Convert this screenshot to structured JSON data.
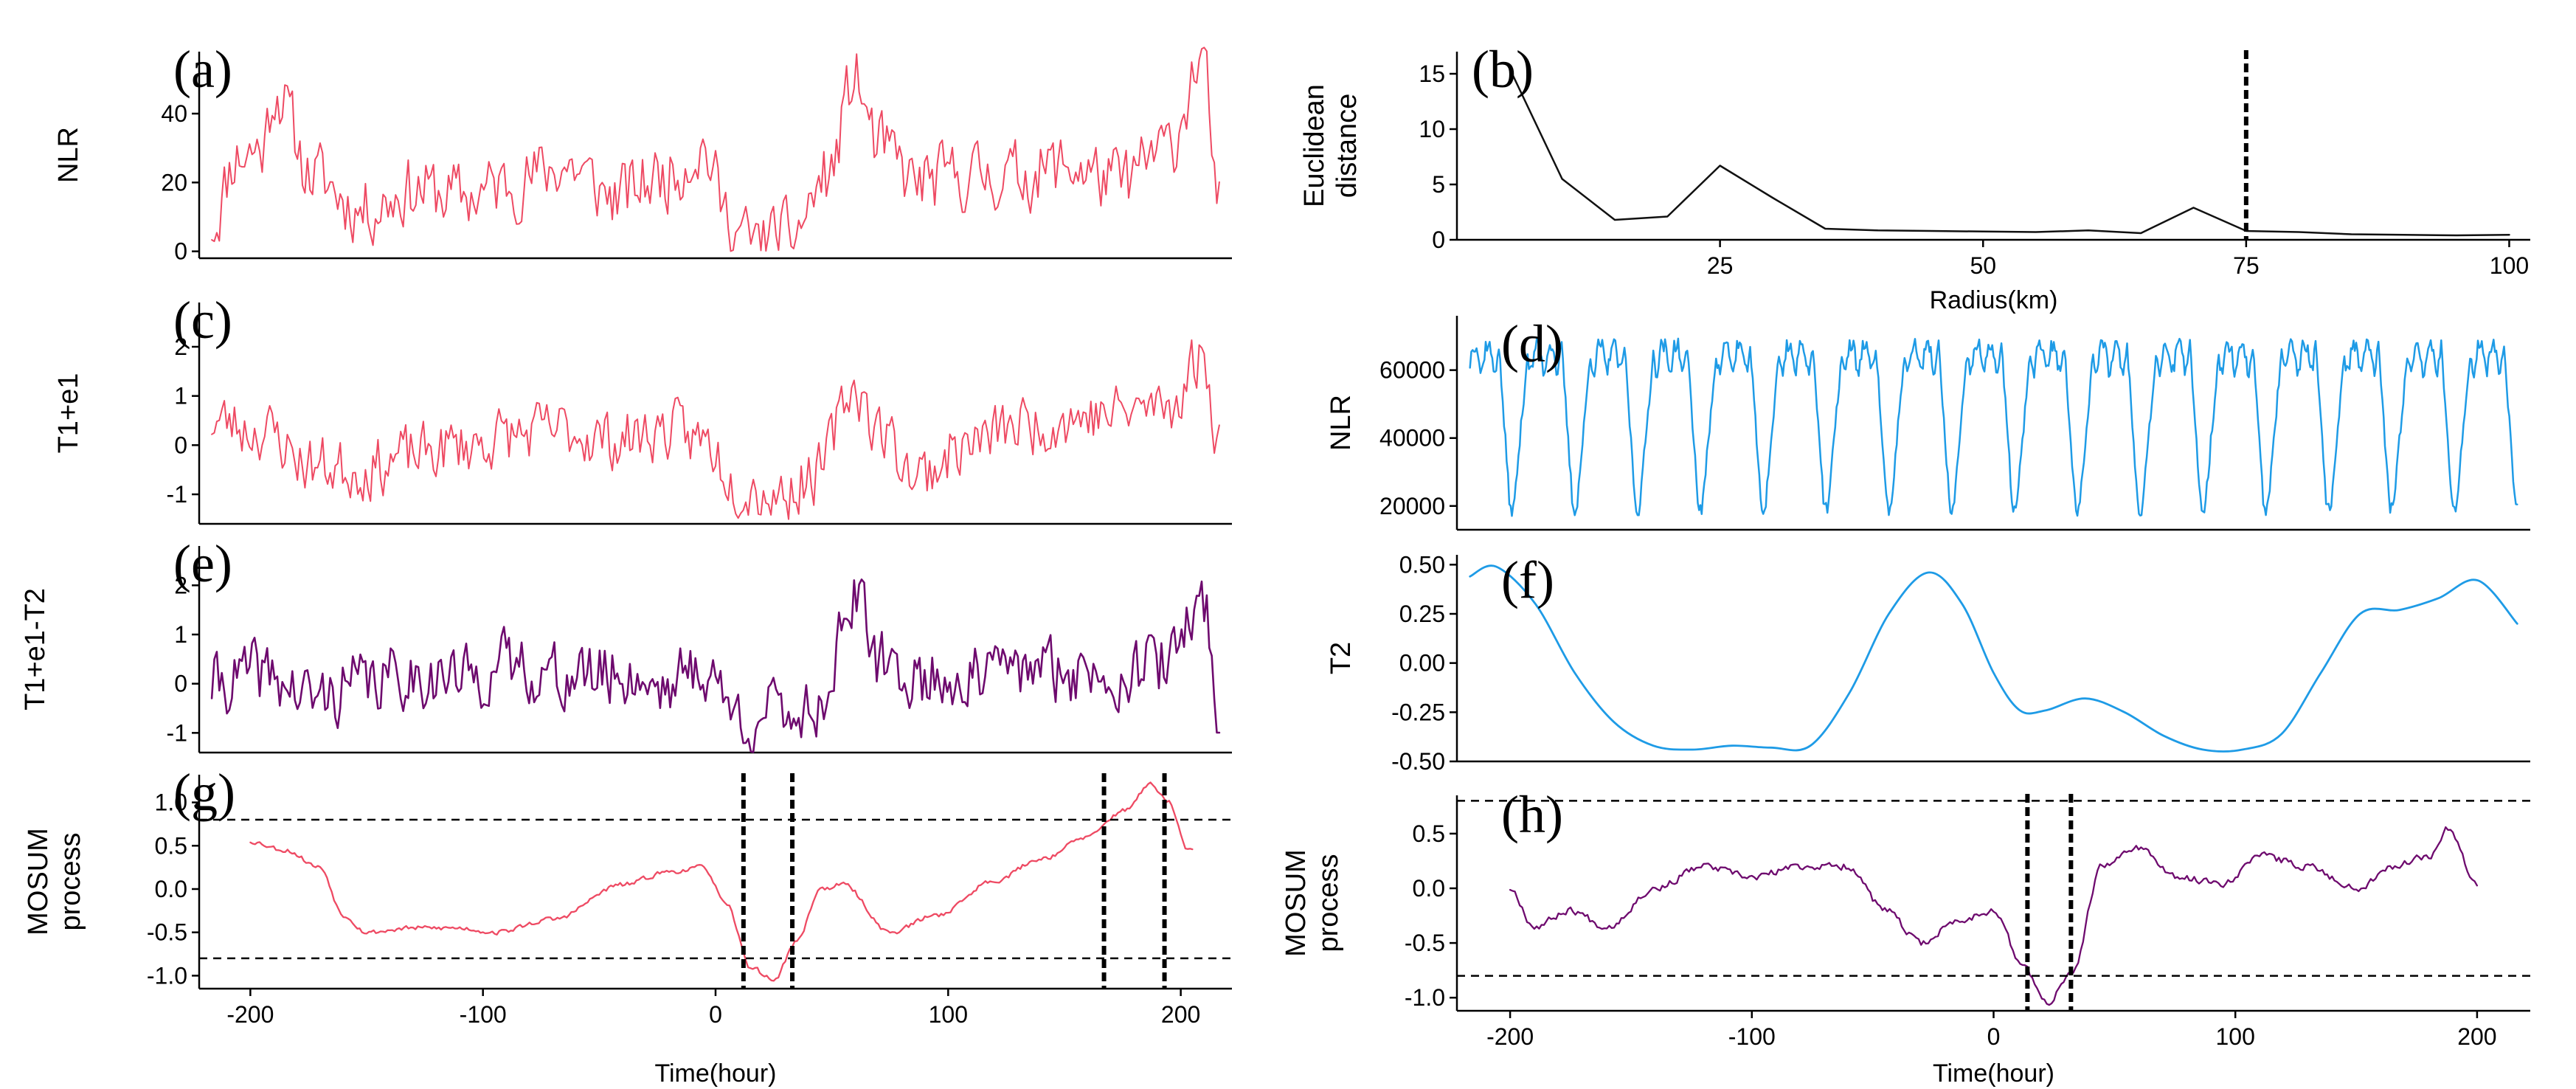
{
  "colors": {
    "red": "#ee4a63",
    "blue": "#1e9be6",
    "purple": "#6e0a6e",
    "black": "#111111"
  },
  "chart_data": [
    {
      "id": "a",
      "type": "line",
      "letter": "(a)",
      "ylabel": "NLR",
      "xlabel": "",
      "xlim": [
        -205,
        205
      ],
      "ylim": [
        -2,
        58
      ],
      "yticks": [
        0,
        20,
        40
      ],
      "xticks": [],
      "x_axis_line": true,
      "series": [
        {
          "name": "NLR",
          "color": "#ee4a63",
          "width": 2,
          "generator": {
            "kind": "noisy",
            "seed": 11,
            "from": -200,
            "to": 200,
            "step": 1,
            "base": 17,
            "noise": 9,
            "min": 0,
            "anchors": [
              [
                -200,
                8
              ],
              [
                -190,
                28
              ],
              [
                -180,
                30
              ],
              [
                -175,
                47
              ],
              [
                -160,
                22
              ],
              [
                -140,
                12
              ],
              [
                -120,
                18
              ],
              [
                -100,
                16
              ],
              [
                -80,
                20
              ],
              [
                -60,
                25
              ],
              [
                -40,
                16
              ],
              [
                -20,
                22
              ],
              [
                -5,
                30
              ],
              [
                5,
                10
              ],
              [
                15,
                2
              ],
              [
                30,
                5
              ],
              [
                45,
                22
              ],
              [
                55,
                50
              ],
              [
                65,
                30
              ],
              [
                80,
                20
              ],
              [
                100,
                22
              ],
              [
                120,
                22
              ],
              [
                140,
                25
              ],
              [
                160,
                20
              ],
              [
                180,
                30
              ],
              [
                193,
                56
              ],
              [
                200,
                12
              ]
            ]
          }
        }
      ],
      "hlines": [],
      "vlines": []
    },
    {
      "id": "b",
      "type": "line",
      "letter": "(b)",
      "ylabel": "Euclidean distance",
      "ylabel_lines": [
        "Euclidean",
        "distance"
      ],
      "xlabel": "Radius(km)",
      "xlim": [
        0,
        102
      ],
      "ylim": [
        0,
        17
      ],
      "yticks": [
        0,
        5,
        10,
        15
      ],
      "xticks": [
        25,
        50,
        75,
        100
      ],
      "x_axis_line": true,
      "series": [
        {
          "name": "Euclidean distance",
          "color": "#111111",
          "width": 2.5,
          "x": [
            5,
            10,
            15,
            20,
            25,
            30,
            35,
            40,
            45,
            50,
            55,
            60,
            65,
            70,
            75,
            80,
            85,
            90,
            95,
            100
          ],
          "y": [
            15.5,
            5.5,
            1.8,
            2.1,
            6.7,
            3.8,
            1.0,
            0.85,
            0.8,
            0.75,
            0.7,
            0.85,
            0.6,
            2.9,
            0.8,
            0.7,
            0.5,
            0.45,
            0.4,
            0.45
          ]
        }
      ],
      "hlines": [],
      "vlines": [
        75
      ]
    },
    {
      "id": "c",
      "type": "line",
      "letter": "(c)",
      "ylabel": "T1+e1",
      "xlabel": "",
      "xlim": [
        -205,
        205
      ],
      "ylim": [
        -1.6,
        2.9
      ],
      "yticks": [
        -1,
        0,
        1,
        2
      ],
      "xticks": [],
      "x_axis_line": true,
      "series": [
        {
          "name": "T1+e1",
          "color": "#ee4a63",
          "width": 2,
          "generator": {
            "kind": "noisy",
            "seed": 23,
            "from": -200,
            "to": 200,
            "step": 1,
            "base": 0.2,
            "noise": 0.55,
            "anchors": [
              [
                -200,
                0.5
              ],
              [
                -180,
                0.3
              ],
              [
                -160,
                -0.4
              ],
              [
                -140,
                -0.5
              ],
              [
                -120,
                -0.2
              ],
              [
                -100,
                0.0
              ],
              [
                -80,
                0.2
              ],
              [
                -60,
                0.3
              ],
              [
                -40,
                0.1
              ],
              [
                -20,
                0.3
              ],
              [
                -5,
                0.1
              ],
              [
                10,
                -0.8
              ],
              [
                25,
                -1.0
              ],
              [
                40,
                -0.6
              ],
              [
                55,
                1.2
              ],
              [
                65,
                0.3
              ],
              [
                80,
                -0.6
              ],
              [
                100,
                0.0
              ],
              [
                120,
                0.4
              ],
              [
                150,
                0.6
              ],
              [
                180,
                0.8
              ],
              [
                193,
                1.8
              ],
              [
                200,
                0.2
              ]
            ]
          }
        }
      ],
      "hlines": [],
      "vlines": []
    },
    {
      "id": "d",
      "type": "line",
      "letter": "(d)",
      "ylabel": "NLR",
      "xlabel": "",
      "xlim": [
        -205,
        205
      ],
      "ylim": [
        13000,
        76000
      ],
      "yticks": [
        20000,
        40000,
        60000
      ],
      "xticks": [],
      "x_axis_line": true,
      "series": [
        {
          "name": "NLR",
          "color": "#1e9be6",
          "width": 2.5,
          "generator": {
            "kind": "periodic",
            "seed": 37,
            "from": -200,
            "to": 200,
            "step": 0.5,
            "period": 24,
            "phase": -202,
            "low": 19000,
            "high": 65000,
            "noise": 2000,
            "lowDays": 2,
            "highDays": 2
          }
        }
      ],
      "hlines": [],
      "vlines": []
    },
    {
      "id": "e",
      "type": "line",
      "letter": "(e)",
      "ylabel": "T1+e1-T2",
      "xlabel": "",
      "xlim": [
        -205,
        205
      ],
      "ylim": [
        -1.4,
        2.8
      ],
      "yticks": [
        -1,
        0,
        1,
        2
      ],
      "xticks": [],
      "x_axis_line": true,
      "series": [
        {
          "name": "T1+e1-T2",
          "color": "#6e0a6e",
          "width": 2.6,
          "generator": {
            "kind": "noisy",
            "seed": 41,
            "from": -200,
            "to": 200,
            "step": 1,
            "base": 0.1,
            "noise": 0.6,
            "anchors": [
              [
                -200,
                0.0
              ],
              [
                -180,
                0.2
              ],
              [
                -160,
                -0.3
              ],
              [
                -140,
                0.0
              ],
              [
                -120,
                0.2
              ],
              [
                -100,
                0.1
              ],
              [
                -80,
                0.4
              ],
              [
                -60,
                0.1
              ],
              [
                -40,
                0.2
              ],
              [
                -20,
                0.0
              ],
              [
                -5,
                0.3
              ],
              [
                10,
                -0.7
              ],
              [
                25,
                -0.6
              ],
              [
                40,
                -0.5
              ],
              [
                55,
                1.7
              ],
              [
                65,
                0.4
              ],
              [
                80,
                0.1
              ],
              [
                100,
                0.1
              ],
              [
                120,
                0.3
              ],
              [
                150,
                0.2
              ],
              [
                180,
                0.4
              ],
              [
                193,
                1.8
              ],
              [
                200,
                -0.5
              ]
            ]
          }
        }
      ],
      "hlines": [],
      "vlines": []
    },
    {
      "id": "f",
      "type": "line",
      "letter": "(f)",
      "ylabel": "T2",
      "xlabel": "",
      "xlim": [
        -205,
        205
      ],
      "ylim": [
        -0.5,
        0.55
      ],
      "yticks": [
        -0.5,
        -0.25,
        0.0,
        0.25,
        0.5
      ],
      "ytick_labels": [
        "-0.50",
        "-0.25",
        "0.00",
        "0.25",
        "0.50"
      ],
      "xticks": [],
      "x_axis_line": true,
      "series": [
        {
          "name": "T2",
          "color": "#1e9be6",
          "width": 2.8,
          "smooth": true,
          "x": [
            -200,
            -190,
            -175,
            -160,
            -145,
            -130,
            -115,
            -100,
            -85,
            -70,
            -55,
            -40,
            -25,
            -12,
            0,
            10,
            20,
            35,
            50,
            65,
            80,
            95,
            110,
            125,
            140,
            155,
            170,
            185,
            200
          ],
          "y": [
            0.44,
            0.49,
            0.3,
            -0.05,
            -0.3,
            -0.42,
            -0.44,
            -0.42,
            -0.43,
            -0.42,
            -0.15,
            0.25,
            0.46,
            0.3,
            -0.05,
            -0.24,
            -0.24,
            -0.18,
            -0.25,
            -0.37,
            -0.44,
            -0.44,
            -0.36,
            -0.05,
            0.25,
            0.27,
            0.33,
            0.42,
            0.2
          ]
        }
      ],
      "hlines": [],
      "vlines": []
    },
    {
      "id": "g",
      "type": "line",
      "letter": "(g)",
      "ylabel": "MOSUM process",
      "ylabel_lines": [
        "MOSUM",
        "process"
      ],
      "xlabel": "Time(hour)",
      "xlim": [
        -222,
        222
      ],
      "ylim": [
        -1.15,
        1.32
      ],
      "yticks": [
        -1,
        -0.5,
        0,
        0.5,
        1
      ],
      "ytick_labels": [
        "-1.0",
        "-0.5",
        "0.0",
        "0.5",
        "1.0"
      ],
      "xticks": [
        -200,
        -100,
        0,
        100,
        200
      ],
      "x_axis_line": true,
      "series": [
        {
          "name": "MOSUM",
          "color": "#ee4a63",
          "width": 2.3,
          "generator": {
            "kind": "noisy",
            "seed": 53,
            "from": -200,
            "to": 205,
            "step": 1,
            "base": 0,
            "noise": 0.025,
            "anchors": [
              [
                -200,
                0.55
              ],
              [
                -185,
                0.45
              ],
              [
                -170,
                0.25
              ],
              [
                -160,
                -0.3
              ],
              [
                -150,
                -0.5
              ],
              [
                -130,
                -0.45
              ],
              [
                -110,
                -0.45
              ],
              [
                -95,
                -0.5
              ],
              [
                -70,
                -0.35
              ],
              [
                -40,
                0.05
              ],
              [
                -20,
                0.2
              ],
              [
                -5,
                0.25
              ],
              [
                5,
                -0.2
              ],
              [
                15,
                -0.9
              ],
              [
                25,
                -1.05
              ],
              [
                35,
                -0.6
              ],
              [
                45,
                0.0
              ],
              [
                55,
                0.05
              ],
              [
                75,
                -0.5
              ],
              [
                95,
                -0.3
              ],
              [
                120,
                0.1
              ],
              [
                140,
                0.35
              ],
              [
                160,
                0.6
              ],
              [
                175,
                0.9
              ],
              [
                187,
                1.2
              ],
              [
                195,
                1.0
              ],
              [
                203,
                0.45
              ]
            ]
          }
        }
      ],
      "hlines": [
        0.8,
        -0.8
      ],
      "vlines": [
        12,
        33,
        167,
        193
      ]
    },
    {
      "id": "h",
      "type": "line",
      "letter": "(h)",
      "ylabel": "MOSUM process",
      "ylabel_lines": [
        "MOSUM",
        "process"
      ],
      "xlabel": "Time(hour)",
      "xlim": [
        -222,
        222
      ],
      "ylim": [
        -1.12,
        0.85
      ],
      "yticks": [
        -1,
        -0.5,
        0,
        0.5
      ],
      "ytick_labels": [
        "-1.0",
        "-0.5",
        "0.0",
        "0.5"
      ],
      "xticks": [
        -200,
        -100,
        0,
        100,
        200
      ],
      "x_axis_line": true,
      "series": [
        {
          "name": "MOSUM",
          "color": "#6e0a6e",
          "width": 2.3,
          "generator": {
            "kind": "noisy",
            "seed": 67,
            "from": -200,
            "to": 200,
            "step": 1,
            "base": 0,
            "noise": 0.03,
            "anchors": [
              [
                -200,
                0.0
              ],
              [
                -190,
                -0.35
              ],
              [
                -175,
                -0.2
              ],
              [
                -160,
                -0.35
              ],
              [
                -140,
                0.0
              ],
              [
                -120,
                0.2
              ],
              [
                -100,
                0.1
              ],
              [
                -80,
                0.2
              ],
              [
                -60,
                0.2
              ],
              [
                -45,
                -0.2
              ],
              [
                -30,
                -0.5
              ],
              [
                -15,
                -0.3
              ],
              [
                0,
                -0.2
              ],
              [
                12,
                -0.7
              ],
              [
                22,
                -1.05
              ],
              [
                32,
                -0.8
              ],
              [
                45,
                0.2
              ],
              [
                60,
                0.38
              ],
              [
                75,
                0.1
              ],
              [
                95,
                0.05
              ],
              [
                110,
                0.3
              ],
              [
                130,
                0.2
              ],
              [
                150,
                0.0
              ],
              [
                165,
                0.2
              ],
              [
                180,
                0.3
              ],
              [
                188,
                0.55
              ],
              [
                200,
                0.05
              ]
            ]
          }
        }
      ],
      "hlines": [
        0.8,
        -0.8
      ],
      "vlines": [
        14,
        32
      ]
    }
  ]
}
